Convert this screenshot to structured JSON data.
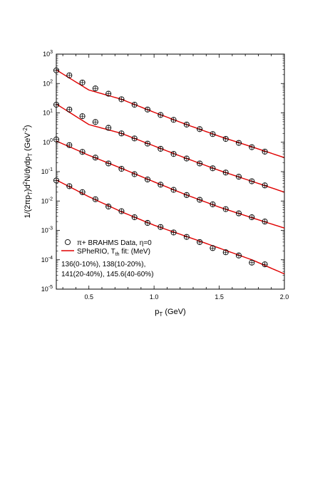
{
  "chart_data": {
    "type": "scatter",
    "xlabel": "p",
    "xlabel_sub": "T",
    "xlabel_unit": " (GeV)",
    "ylabel": "1/(2πp",
    "ylabel_sub1": "T",
    "ylabel_mid": ")d",
    "ylabel_sup1": "2",
    "ylabel_mid2": "N/dydp",
    "ylabel_sub2": "T",
    "ylabel_unit": " (GeV",
    "ylabel_sup2": "-2",
    "ylabel_end": ")",
    "xlim": [
      0.25,
      2.0
    ],
    "ylim_exponent": [
      -5,
      3
    ],
    "log_y": true,
    "x_ticks": [
      {
        "value": 0.5,
        "label": "0.5"
      },
      {
        "value": 1.0,
        "label": "1.0"
      },
      {
        "value": 1.5,
        "label": "1.5"
      },
      {
        "value": 2.0,
        "label": "2.0"
      }
    ],
    "y_ticks": [
      {
        "exp": 3,
        "base": "10",
        "sup": "3"
      },
      {
        "exp": 2,
        "base": "10",
        "sup": "2"
      },
      {
        "exp": 1,
        "base": "10",
        "sup": "1"
      },
      {
        "exp": 0,
        "base": "10",
        "sup": "0"
      },
      {
        "exp": -1,
        "base": "10",
        "sup": "-1"
      },
      {
        "exp": -2,
        "base": "10",
        "sup": "-2"
      },
      {
        "exp": -3,
        "base": "10",
        "sup": "-3"
      },
      {
        "exp": -4,
        "base": "10",
        "sup": "-4"
      },
      {
        "exp": -5,
        "base": "10",
        "sup": "-5"
      }
    ],
    "x": [
      0.25,
      0.35,
      0.45,
      0.55,
      0.65,
      0.75,
      0.85,
      0.95,
      1.05,
      1.15,
      1.25,
      1.35,
      1.45,
      1.55,
      1.65,
      1.75,
      1.85
    ],
    "series": [
      {
        "marker": "circle",
        "values": [
          280,
          190,
          108,
          68,
          45,
          29,
          19,
          13,
          8.5,
          5.8,
          4.0,
          2.8,
          1.9,
          1.3,
          0.95,
          0.68,
          0.48
        ]
      },
      {
        "marker": "circle",
        "values": [
          19,
          13,
          7.7,
          4.9,
          3.1,
          2.0,
          1.35,
          0.9,
          0.6,
          0.4,
          0.28,
          0.19,
          0.13,
          0.093,
          0.067,
          0.047,
          0.034
        ]
      },
      {
        "marker": "circle",
        "values": [
          1.25,
          0.8,
          0.47,
          0.3,
          0.19,
          0.125,
          0.082,
          0.054,
          0.036,
          0.024,
          0.016,
          0.011,
          0.0077,
          0.0053,
          0.0038,
          0.0028,
          0.002
        ]
      },
      {
        "marker": "circle",
        "values": [
          0.05,
          0.032,
          0.02,
          0.0115,
          0.0065,
          0.0045,
          0.0028,
          0.0018,
          0.0013,
          0.00085,
          0.0006,
          0.0004,
          0.00025,
          0.00018,
          0.00014,
          8e-05,
          7e-05
        ]
      }
    ],
    "fits": [
      {
        "color": "#e00000",
        "x": [
          0.25,
          0.5,
          0.75,
          1.0,
          1.25,
          1.5,
          1.75,
          2.0
        ],
        "values": [
          290,
          60,
          29,
          10.5,
          4.0,
          1.6,
          0.7,
          0.3
        ]
      },
      {
        "color": "#e00000",
        "x": [
          0.25,
          0.5,
          0.75,
          1.0,
          1.25,
          1.5,
          1.75,
          2.0
        ],
        "values": [
          20,
          4.0,
          2.0,
          0.75,
          0.28,
          0.11,
          0.047,
          0.02
        ]
      },
      {
        "color": "#e00000",
        "x": [
          0.25,
          0.5,
          0.75,
          1.0,
          1.25,
          1.5,
          1.75,
          2.0
        ],
        "values": [
          1.1,
          0.36,
          0.13,
          0.045,
          0.016,
          0.0062,
          0.0027,
          0.0012
        ]
      },
      {
        "color": "#e00000",
        "x": [
          0.25,
          0.5,
          0.75,
          1.0,
          1.25,
          1.5,
          1.75,
          2.0
        ],
        "values": [
          0.052,
          0.014,
          0.0043,
          0.0015,
          0.00062,
          0.00025,
          0.0001,
          3.3e-05
        ]
      }
    ],
    "legend": {
      "placement": "bottom-left",
      "data_entry": "π+ BRAHMS Data, η=0",
      "fit_entry": "SPheRIO, T",
      "fit_entry_sub": "th",
      "fit_entry_end": " fit: (MeV)",
      "note_line1": "136(0-10%), 138(10-20%),",
      "note_line2": "141(20-40%), 145.6(40-60%)"
    },
    "colors": {
      "fit": "#e00000",
      "marker": "#000000",
      "axis": "#000000"
    },
    "grid": false
  }
}
